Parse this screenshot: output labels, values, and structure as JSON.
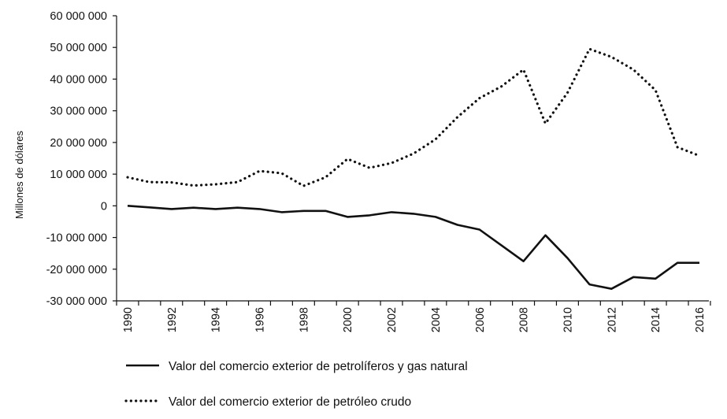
{
  "chart_data": {
    "type": "line",
    "ylabel": "Millones de dólares",
    "xlabel": "",
    "ylim": [
      -30000000,
      60000000
    ],
    "yticks": [
      60000000,
      50000000,
      40000000,
      30000000,
      20000000,
      10000000,
      0,
      -10000000,
      -20000000,
      -30000000
    ],
    "ytick_labels": [
      "60 000 000",
      "50 000 000",
      "40 000 000",
      "30 000 000",
      "20 000 000",
      "10 000 000",
      "0",
      "-10 000 000",
      "-20 000 000",
      "-30 000 000"
    ],
    "xlim": [
      1990,
      2016
    ],
    "xtick_labels": [
      "1990",
      "1992",
      "1994",
      "1996",
      "1998",
      "2000",
      "2002",
      "2004",
      "2006",
      "2008",
      "2010",
      "2012",
      "2014",
      "2016"
    ],
    "grid": false,
    "legend_placement": "bottom",
    "x": [
      1990,
      1991,
      1992,
      1993,
      1994,
      1995,
      1996,
      1997,
      1998,
      1999,
      2000,
      2001,
      2002,
      2003,
      2004,
      2005,
      2006,
      2007,
      2008,
      2009,
      2010,
      2011,
      2012,
      2013,
      2014,
      2015,
      2016
    ],
    "series": [
      {
        "name": "Valor del comercio exterior de petrolíferos y gas natural",
        "style": "solid",
        "values": [
          0,
          -500000,
          -1000000,
          -600000,
          -1000000,
          -600000,
          -1000000,
          -2000000,
          -1600000,
          -1600000,
          -3500000,
          -3000000,
          -2000000,
          -2500000,
          -3500000,
          -6000000,
          -7500000,
          -12500000,
          -17500000,
          -9300000,
          -16500000,
          -24800000,
          -26200000,
          -22500000,
          -23000000,
          -18000000,
          -18000000
        ]
      },
      {
        "name": "Valor del comercio exterior de petróleo crudo",
        "style": "dotted",
        "values": [
          9000000,
          7500000,
          7400000,
          6400000,
          6800000,
          7500000,
          11000000,
          10300000,
          6300000,
          9000000,
          14800000,
          12000000,
          13500000,
          16500000,
          21000000,
          28000000,
          34000000,
          37700000,
          43000000,
          26000000,
          35700000,
          49500000,
          47000000,
          43000000,
          36500000,
          18500000,
          15800000
        ]
      }
    ]
  }
}
